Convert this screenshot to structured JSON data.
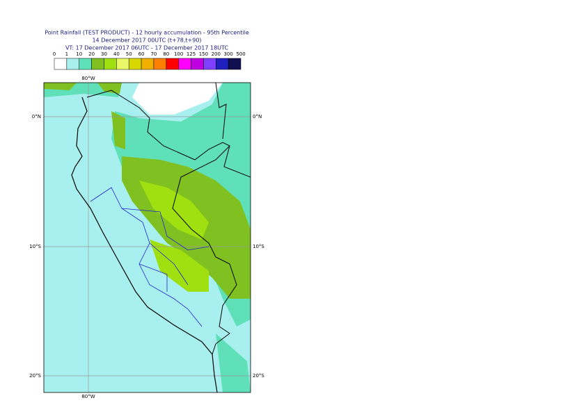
{
  "header": {
    "title": "Point Rainfall (TEST PRODUCT) - 12 hourly accumulation - 95th Percentile",
    "run": "14 December 2017 00UTC (t+78,t+90)",
    "valid": "VT: 17 December 2017 06UTC - 17 December 2017 18UTC"
  },
  "legend": {
    "labels": [
      "0",
      "1",
      "10",
      "20",
      "30",
      "40",
      "50",
      "60",
      "70",
      "80",
      "100",
      "125",
      "150",
      "200",
      "300",
      "500"
    ],
    "colors": [
      "#ffffff",
      "#a8f0f0",
      "#60e0b8",
      "#80c020",
      "#a0e010",
      "#e8f868",
      "#d8d800",
      "#f0b000",
      "#ff8000",
      "#ff0000",
      "#ff00ff",
      "#c000e0",
      "#8040ff",
      "#2020c0",
      "#101050"
    ]
  },
  "map": {
    "lon_labels": [
      "80°W"
    ],
    "lat_labels": [
      "0°N",
      "10°S",
      "20°S"
    ]
  }
}
